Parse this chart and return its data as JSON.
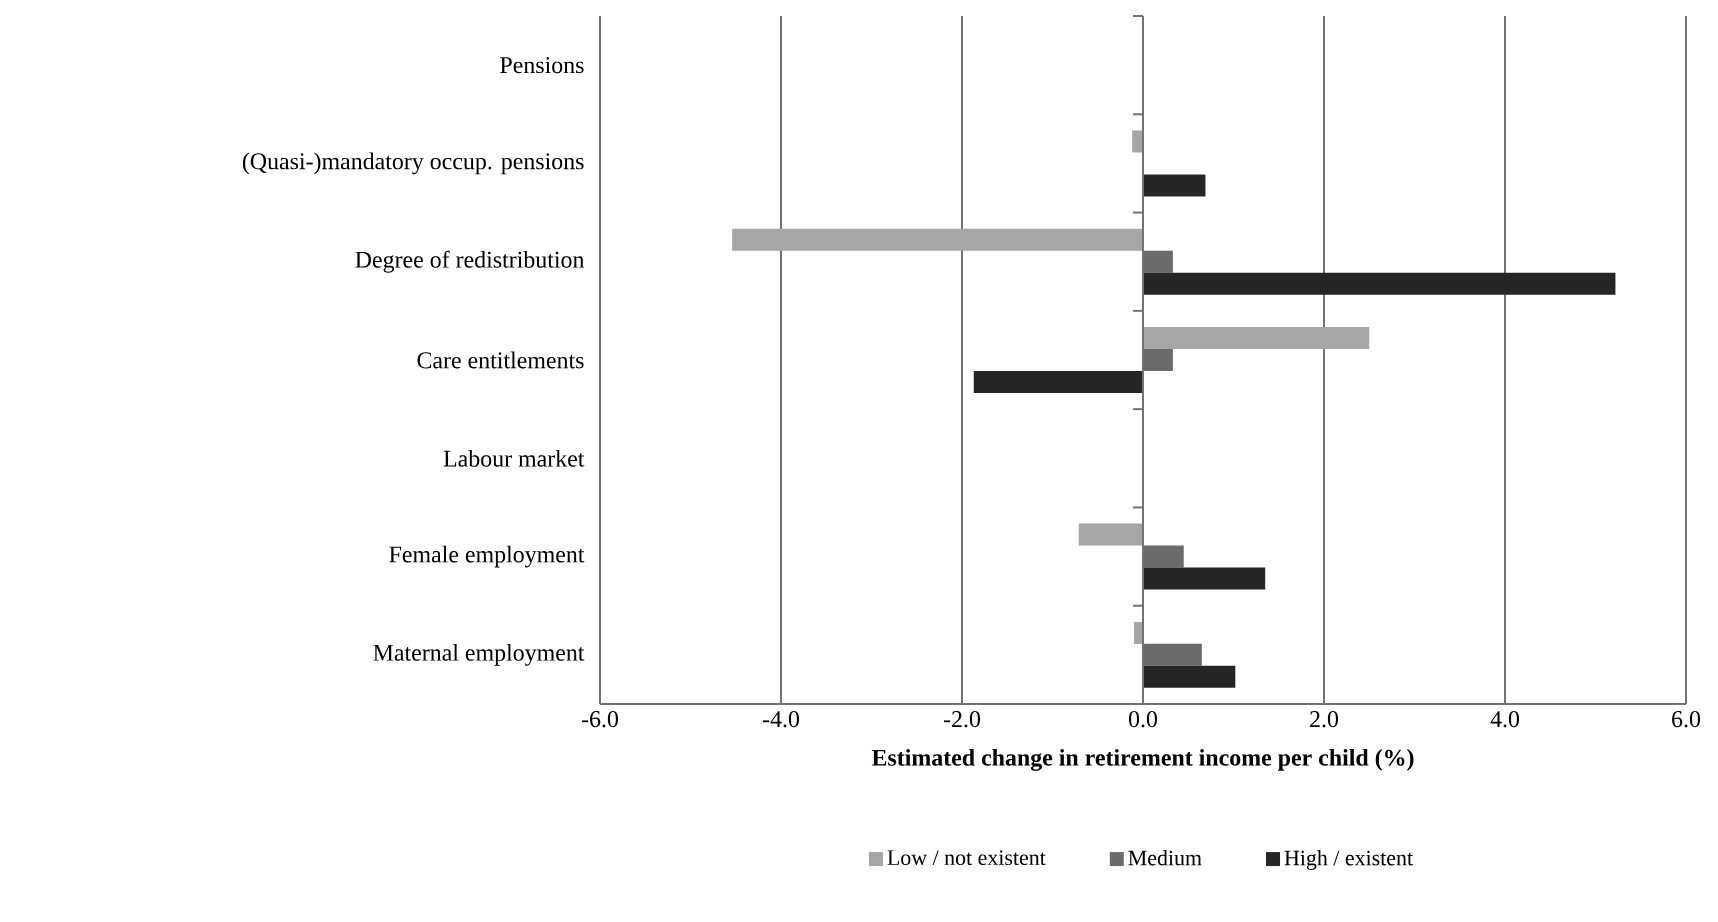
{
  "chart_data": {
    "type": "bar",
    "orientation": "horizontal",
    "xlabel": "Estimated change in retirement income per child (%)",
    "categories": [
      "Pensions",
      "(Quasi-)mandatory occup. pensions",
      "Degree of redistribution",
      "Care entitlements",
      "Labour market",
      "Female employment",
      "Maternal employment"
    ],
    "series": [
      {
        "name": "Low / not existent",
        "color": "#a6a6a6",
        "values": [
          null,
          -0.12,
          -4.54,
          2.5,
          null,
          -0.71,
          -0.1
        ]
      },
      {
        "name": "Medium",
        "color": "#6b6b6b",
        "values": [
          null,
          0,
          0.33,
          0.33,
          null,
          0.45,
          0.65
        ]
      },
      {
        "name": "High / existent",
        "color": "#262626",
        "values": [
          null,
          0.69,
          5.22,
          -1.87,
          null,
          1.35,
          1.02
        ]
      }
    ],
    "xlim": [
      -6,
      6
    ],
    "xticks": [
      {
        "value": -6,
        "label": "-6.0"
      },
      {
        "value": -4,
        "label": "-4.0"
      },
      {
        "value": -2,
        "label": "-2.0"
      },
      {
        "value": 0,
        "label": "0.0"
      },
      {
        "value": 2,
        "label": "2.0"
      },
      {
        "value": 4,
        "label": "4.0"
      },
      {
        "value": 6,
        "label": "6.0"
      }
    ],
    "grid": "x",
    "legend": "bottom"
  }
}
